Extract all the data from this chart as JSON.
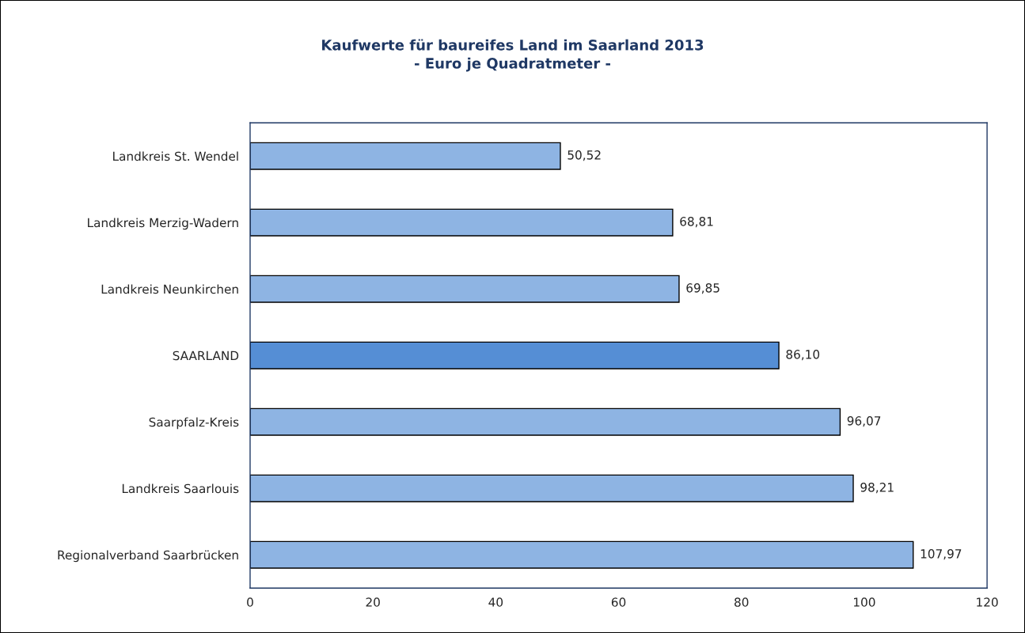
{
  "chart_data": {
    "type": "bar",
    "orientation": "horizontal",
    "title": "Kaufwerte für baureifes Land im Saarland 2013",
    "subtitle": "- Euro je Quadratmeter -",
    "categories": [
      "Landkreis St. Wendel",
      "Landkreis Merzig-Wadern",
      "Landkreis Neunkirchen",
      "SAARLAND",
      "Saarpfalz-Kreis",
      "Landkreis Saarlouis",
      "Regionalverband Saarbrücken"
    ],
    "values": [
      50.52,
      68.81,
      69.85,
      86.1,
      96.07,
      98.21,
      107.97
    ],
    "colors": [
      "#8eb4e3",
      "#8eb4e3",
      "#8eb4e3",
      "#558ed5",
      "#8eb4e3",
      "#8eb4e3",
      "#8eb4e3"
    ],
    "value_labels": [
      "50,52",
      "68,81",
      "69,85",
      "86,10",
      "96,07",
      "98,21",
      "107,97"
    ],
    "xlim": [
      0,
      120
    ],
    "xticks": [
      0,
      20,
      40,
      60,
      80,
      100,
      120
    ]
  }
}
